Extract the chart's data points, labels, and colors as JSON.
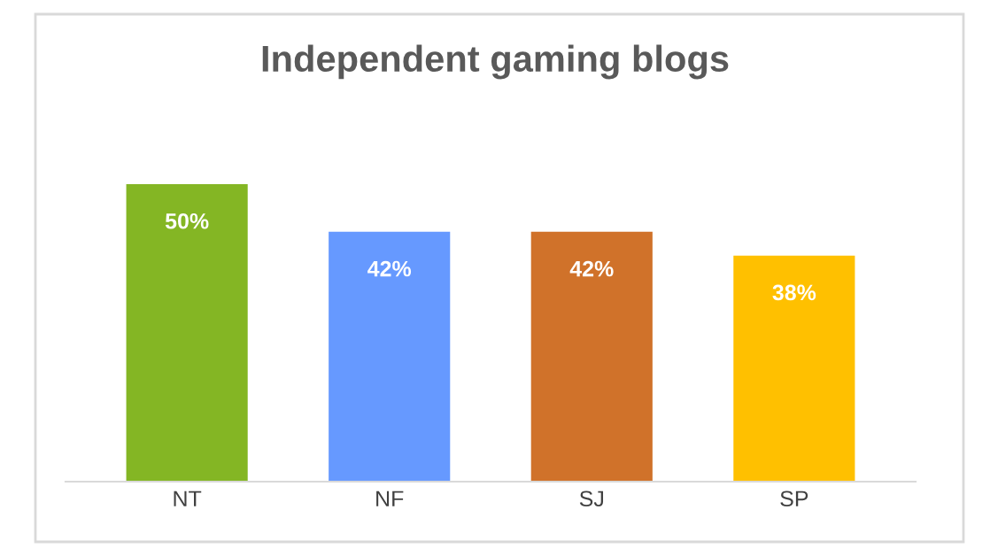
{
  "chart_data": {
    "type": "bar",
    "title": "Independent gaming blogs",
    "categories": [
      "NT",
      "NF",
      "SJ",
      "SP"
    ],
    "values": [
      50,
      42,
      42,
      38
    ],
    "colors": [
      "#84b624",
      "#6699ff",
      "#d0722a",
      "#ffc000"
    ],
    "value_labels": [
      "50%",
      "42%",
      "42%",
      "38%"
    ],
    "legend": false
  }
}
